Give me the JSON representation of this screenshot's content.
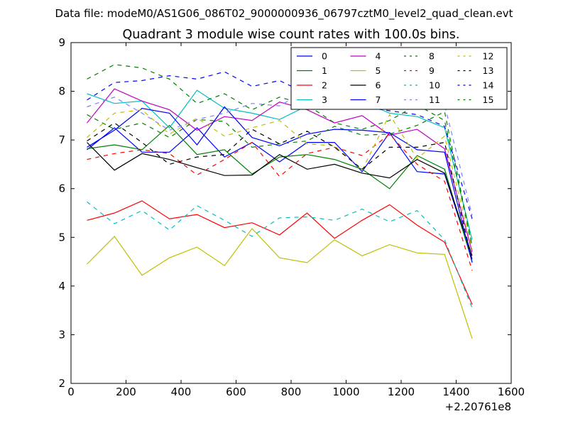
{
  "suptitle": "Data file: modeM0/AS1G06_086T02_9000000936_06797cztM0_level2_quad_clean.evt",
  "chart_data": {
    "type": "line",
    "title": "Quadrant 3 module wise count rates with 100.0s bins.",
    "xlabel": "",
    "ylabel": "",
    "x_offset_label": "+2.20761e8",
    "xlim": [
      0,
      1600
    ],
    "ylim": [
      2,
      9
    ],
    "xticks": [
      0,
      200,
      400,
      600,
      800,
      1000,
      1200,
      1400,
      1600
    ],
    "yticks": [
      2,
      3,
      4,
      5,
      6,
      7,
      8,
      9
    ],
    "x": [
      58,
      158,
      258,
      358,
      458,
      558,
      658,
      758,
      858,
      958,
      1058,
      1158,
      1258,
      1358,
      1458
    ],
    "legend_position": "top-right",
    "series": [
      {
        "name": "0",
        "color": "#0000ff",
        "dash": false,
        "values": [
          6.8,
          7.25,
          6.75,
          6.75,
          7.25,
          6.65,
          6.95,
          6.55,
          6.95,
          6.95,
          6.35,
          7.15,
          6.35,
          6.3,
          4.55
        ]
      },
      {
        "name": "1",
        "color": "#008000",
        "dash": false,
        "values": [
          6.82,
          6.9,
          6.8,
          7.3,
          6.7,
          6.8,
          6.3,
          6.65,
          6.7,
          6.6,
          6.4,
          6.0,
          6.68,
          6.4,
          4.5
        ]
      },
      {
        "name": "2",
        "color": "#ff0000",
        "dash": false,
        "values": [
          5.35,
          5.5,
          5.75,
          5.38,
          5.47,
          5.2,
          5.3,
          5.05,
          5.5,
          4.98,
          5.35,
          5.67,
          5.25,
          4.9,
          3.62
        ]
      },
      {
        "name": "3",
        "color": "#00bfbf",
        "dash": false,
        "values": [
          7.95,
          7.75,
          7.8,
          7.25,
          8.02,
          7.65,
          7.55,
          7.42,
          7.7,
          7.85,
          7.8,
          7.55,
          7.48,
          7.25,
          4.95
        ]
      },
      {
        "name": "4",
        "color": "#bf00bf",
        "dash": false,
        "values": [
          7.35,
          8.05,
          7.8,
          7.62,
          7.2,
          7.48,
          7.4,
          7.78,
          7.62,
          7.35,
          7.5,
          7.1,
          7.22,
          6.82,
          4.7
        ]
      },
      {
        "name": "5",
        "color": "#bfbf00",
        "dash": false,
        "values": [
          4.45,
          5.02,
          4.22,
          4.58,
          4.8,
          4.42,
          5.18,
          4.58,
          4.48,
          4.95,
          4.62,
          4.85,
          4.68,
          4.65,
          2.92
        ]
      },
      {
        "name": "6",
        "color": "#000000",
        "dash": false,
        "values": [
          6.95,
          6.38,
          6.72,
          6.6,
          6.43,
          6.27,
          6.28,
          6.7,
          6.4,
          6.5,
          6.32,
          6.22,
          6.6,
          6.32,
          4.62
        ]
      },
      {
        "name": "7",
        "color": "#0000ff",
        "dash": false,
        "values": [
          6.85,
          7.2,
          7.65,
          7.55,
          6.9,
          7.68,
          7.05,
          6.88,
          7.12,
          7.22,
          7.2,
          7.15,
          6.8,
          6.75,
          4.48
        ]
      },
      {
        "name": "8",
        "color": "#008000",
        "dash": true,
        "values": [
          7.52,
          7.22,
          7.35,
          7.05,
          7.42,
          7.38,
          6.85,
          6.92,
          6.98,
          7.28,
          7.1,
          7.12,
          7.3,
          7.58,
          4.82
        ]
      },
      {
        "name": "9",
        "color": "#ff0000",
        "dash": true,
        "values": [
          6.6,
          6.72,
          6.8,
          6.72,
          6.28,
          6.6,
          6.95,
          6.25,
          6.72,
          6.85,
          6.68,
          7.12,
          6.5,
          6.15,
          4.32
        ]
      },
      {
        "name": "10",
        "color": "#00bfbf",
        "dash": true,
        "values": [
          5.73,
          5.28,
          5.55,
          5.15,
          5.65,
          5.35,
          5.02,
          5.4,
          5.42,
          5.35,
          5.58,
          5.32,
          5.55,
          4.95,
          3.55
        ]
      },
      {
        "name": "11",
        "color": "#8080ff",
        "dash": true,
        "values": [
          7.68,
          7.88,
          7.55,
          7.2,
          7.42,
          7.55,
          7.75,
          7.7,
          8.02,
          8.12,
          8.1,
          8.05,
          7.72,
          7.72,
          5.45
        ]
      },
      {
        "name": "12",
        "color": "#bfbf00",
        "dash": true,
        "values": [
          7.05,
          7.55,
          7.62,
          7.12,
          7.45,
          7.08,
          7.25,
          7.4,
          6.92,
          6.88,
          6.38,
          7.52,
          6.62,
          7.08,
          4.75
        ]
      },
      {
        "name": "13",
        "color": "#000000",
        "dash": true,
        "values": [
          6.98,
          7.35,
          6.95,
          6.5,
          6.65,
          6.7,
          7.22,
          6.92,
          7.18,
          6.85,
          6.4,
          6.85,
          6.85,
          6.95,
          4.52
        ]
      },
      {
        "name": "14",
        "color": "#0000ff",
        "dash": true,
        "values": [
          7.82,
          8.18,
          8.22,
          8.32,
          8.25,
          8.4,
          8.1,
          8.22,
          7.95,
          7.78,
          7.68,
          7.6,
          7.52,
          7.28,
          5.38
        ]
      },
      {
        "name": "15",
        "color": "#008000",
        "dash": true,
        "values": [
          8.25,
          8.55,
          8.48,
          8.25,
          7.75,
          7.95,
          7.62,
          7.88,
          7.72,
          7.35,
          7.22,
          7.4,
          7.72,
          7.4,
          4.82
        ]
      }
    ]
  }
}
